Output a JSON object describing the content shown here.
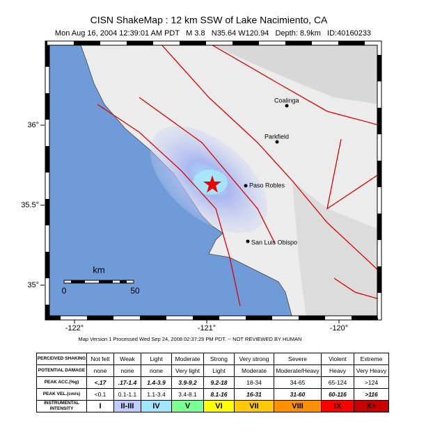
{
  "header": {
    "title": "CISN ShakeMap : 12 km SSW of  Lake Nacimiento, CA",
    "subtitle": "Mon Aug 16, 2004 12:39:01 AM PDT   M 3.8   N35.64 W120.94   Depth: 8.9km   ID:40160233"
  },
  "map": {
    "lat_ticks": [
      {
        "value": 36,
        "label": "36°"
      },
      {
        "value": 35.5,
        "label": "35.5°"
      },
      {
        "value": 35,
        "label": "35°"
      }
    ],
    "lon_ticks": [
      {
        "value": -122,
        "label": "-122°"
      },
      {
        "value": -121,
        "label": "-121°"
      },
      {
        "value": -120,
        "label": "-120°"
      }
    ],
    "places": [
      "Coalinga",
      "Parkfield",
      "Paso Robles",
      "San Luis Obispo"
    ],
    "scale_bar": {
      "unit": "km",
      "labels": [
        "0",
        "50"
      ]
    },
    "footnote": "Map Version 1 Processed Wed Sep 24, 2008 02:37:29 PM PDT. -- NOT REVIEWED BY HUMAN"
  },
  "table": {
    "rows": [
      [
        "PERCEIVED SHAKING",
        "Not felt",
        "Weak",
        "Light",
        "Moderate",
        "Strong",
        "Very strong",
        "Severe",
        "Violent",
        "Extreme"
      ],
      [
        "POTENTIAL DAMAGE",
        "none",
        "none",
        "none",
        "Very light",
        "Light",
        "Moderate",
        "Moderate/Heavy",
        "Heavy",
        "Very Heavy"
      ],
      [
        "PEAK ACC.(%g)",
        "<.17",
        ".17-1.4",
        "1.4-3.9",
        "3.9-9.2",
        "9.2-18",
        "18-34",
        "34-65",
        "65-124",
        ">124"
      ],
      [
        "PEAK VEL.(cm/s)",
        "<0.1",
        "0.1-1.1",
        "1.1-3.4",
        "3.4-8.1",
        "8.1-16",
        "16-31",
        "31-60",
        "60-116",
        ">116"
      ],
      [
        "INSTRUMENTAL INTENSITY",
        "I",
        "II-III",
        "IV",
        "V",
        "VI",
        "VII",
        "VIII",
        "IX",
        "X+"
      ]
    ],
    "intensity_colors": [
      "#ffffff",
      "#bfccff",
      "#a0e6ff",
      "#7aff93",
      "#ffff00",
      "#ffc800",
      "#ff9100",
      "#ff0000",
      "#c80000"
    ]
  }
}
